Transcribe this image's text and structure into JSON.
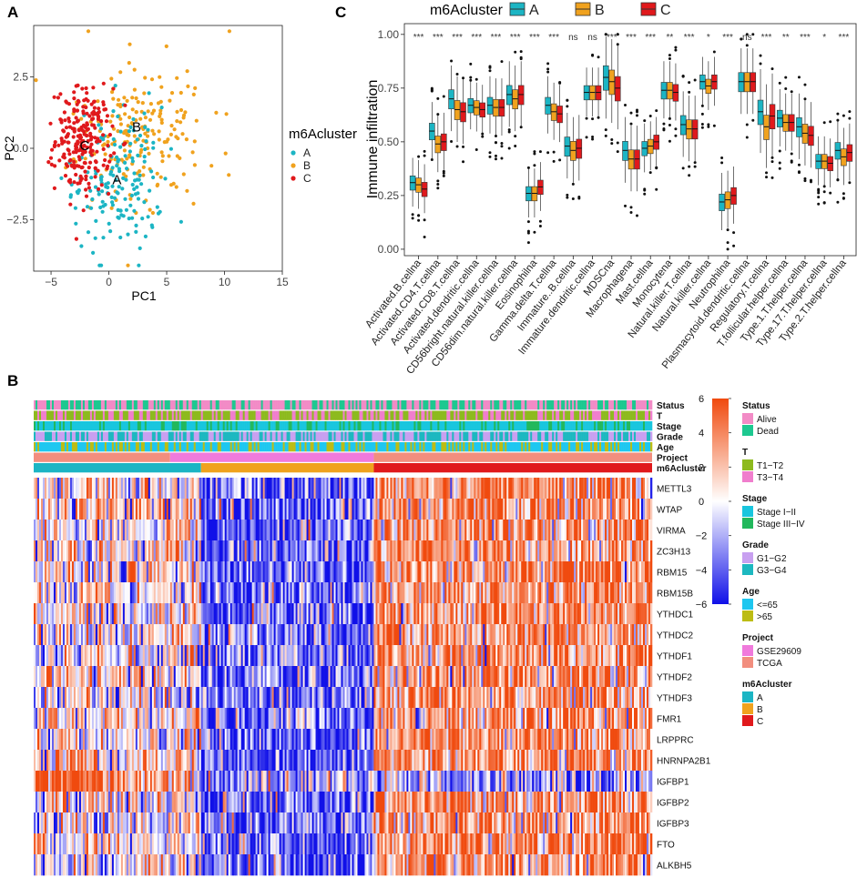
{
  "colors": {
    "A": "#1CB5C4",
    "B": "#F0A21E",
    "C": "#E0191C",
    "Alive": "#F28BC6",
    "Dead": "#1DC890",
    "T1T2": "#8DBA1E",
    "T3T4": "#F07ECD",
    "StageI": "#19C6DE",
    "StageIII": "#22B85C",
    "G1G2": "#C8A0F0",
    "G3G4": "#1DB8C0",
    "Age65": "#1EC7F0",
    "Age65plus": "#BCBC14",
    "GSE": "#F07ADC",
    "TCGA": "#F28E7E",
    "heatHigh": "#F04A0E",
    "heatMid": "#ffffff",
    "heatLow": "#1010E8"
  },
  "panels": {
    "a": "A",
    "b": "B",
    "c": "C"
  },
  "chart_data": [
    {
      "type": "scatter",
      "panel": "A",
      "xlabel": "PC1",
      "ylabel": "PC2",
      "xlim": [
        -6.5,
        15
      ],
      "ylim": [
        -4.3,
        4.3
      ],
      "xticks": [
        -5,
        0,
        5,
        10,
        15
      ],
      "xtick_labels": [
        "−5",
        "0",
        "5",
        "10",
        "15"
      ],
      "yticks": [
        -2.5,
        0,
        2.5
      ],
      "ytick_labels": [
        "−2.5",
        "0.0",
        "2.5"
      ],
      "legend_title": "m6Acluster",
      "legend": [
        "A",
        "B",
        "C"
      ],
      "centroid_labels": [
        {
          "label": "A",
          "x": 0.7,
          "y": -1.1
        },
        {
          "label": "B",
          "x": 2.4,
          "y": 0.75
        },
        {
          "label": "C",
          "x": -2.1,
          "y": 0.1
        }
      ],
      "series": [
        {
          "name": "A",
          "center": [
            0.8,
            -1.1
          ],
          "spread": [
            2.6,
            1.3
          ],
          "n": 170
        },
        {
          "name": "B",
          "center": [
            2.6,
            0.7
          ],
          "spread": [
            3.0,
            1.2
          ],
          "n": 200
        },
        {
          "name": "C",
          "center": [
            -2.2,
            0.3
          ],
          "spread": [
            1.6,
            0.9
          ],
          "n": 230
        }
      ]
    },
    {
      "type": "box",
      "panel": "C",
      "legend_title": "m6Acluster",
      "legend": [
        "A",
        "B",
        "C"
      ],
      "ylabel": "Immune infiltration",
      "ylim": [
        -0.03,
        1.05
      ],
      "yticks": [
        0,
        0.25,
        0.5,
        0.75,
        1.0
      ],
      "ytick_labels": [
        "0.00",
        "0.25",
        "0.50",
        "0.75",
        "1.00"
      ],
      "categories": [
        "Activated.B.cellna",
        "Activated.CD4.T.cellna",
        "Activated.CD8.T.cellna",
        "Activated.dendritic.cellna",
        "CD56bright.natural.killer.cellna",
        "CD56dim.natural.killer.cellna",
        "Eosinophilna",
        "Gamma.delta.T.cellna",
        "Immature..B.cellna",
        "Immature.dendritic.cellna",
        "MDSCna",
        "Macrophagena",
        "Mast.cellna",
        "Monocytena",
        "Natural.killer.T.cellna",
        "Natural.killer.cellna",
        "Neutrophilna",
        "Plasmacytoid.dendritic.cellna",
        "Regulatory.T.cellna",
        "T.follicular.helper.cellna",
        "Type.1.T.helper.cellna",
        "Type.17.T.helper.cellna",
        "Type.2.T.helper.cellna"
      ],
      "significance": [
        "***",
        "***",
        "***",
        "***",
        "***",
        "***",
        "***",
        "***",
        "ns",
        "ns",
        "***",
        "***",
        "***",
        "**",
        "***",
        "*",
        "***",
        "ns",
        "***",
        "**",
        "***",
        "*",
        "***"
      ],
      "series": [
        {
          "name": "A",
          "median": [
            0.31,
            0.55,
            0.7,
            0.67,
            0.67,
            0.72,
            0.26,
            0.67,
            0.48,
            0.73,
            0.8,
            0.46,
            0.47,
            0.74,
            0.58,
            0.78,
            0.22,
            0.78,
            0.64,
            0.61,
            0.57,
            0.41,
            0.46
          ]
        },
        {
          "name": "B",
          "median": [
            0.3,
            0.49,
            0.65,
            0.66,
            0.66,
            0.7,
            0.26,
            0.64,
            0.46,
            0.73,
            0.78,
            0.42,
            0.48,
            0.74,
            0.56,
            0.76,
            0.23,
            0.78,
            0.57,
            0.59,
            0.54,
            0.41,
            0.43
          ]
        },
        {
          "name": "C",
          "median": [
            0.28,
            0.5,
            0.64,
            0.65,
            0.66,
            0.72,
            0.29,
            0.63,
            0.47,
            0.73,
            0.75,
            0.42,
            0.5,
            0.73,
            0.56,
            0.78,
            0.25,
            0.78,
            0.62,
            0.59,
            0.53,
            0.4,
            0.45
          ]
        }
      ]
    },
    {
      "type": "heatmap",
      "panel": "B",
      "rows": [
        "METTL3",
        "WTAP",
        "VIRMA",
        "ZC3H13",
        "RBM15",
        "RBM15B",
        "YTHDC1",
        "YTHDC2",
        "YTHDF1",
        "YTHDF2",
        "YTHDF3",
        "FMR1",
        "LRPPRC",
        "HNRNPA2B1",
        "IGFBP1",
        "IGFBP2",
        "IGFBP3",
        "FTO",
        "ALKBH5"
      ],
      "annotation_rows": [
        "Status",
        "T",
        "Stage",
        "Grade",
        "Age",
        "Project",
        "m6Acluster"
      ],
      "colorbar_ticks": [
        6,
        4,
        2,
        0,
        -2,
        -4,
        -6
      ],
      "colorbar_labels": [
        "6",
        "4",
        "2",
        "0",
        "−2",
        "−4",
        "−6"
      ],
      "cluster_fractions": {
        "A": 0.27,
        "B": 0.28,
        "C": 0.45
      },
      "project_fractions": {
        "TCGA": 0.22,
        "GSE29609": 0.33,
        "TCGA2": 0.45
      },
      "legend": [
        {
          "title": "Status",
          "items": [
            {
              "label": "Alive",
              "color": "#F28BC6"
            },
            {
              "label": "Dead",
              "color": "#1DC890"
            }
          ]
        },
        {
          "title": "T",
          "items": [
            {
              "label": "T1−T2",
              "color": "#8DBA1E"
            },
            {
              "label": "T3−T4",
              "color": "#F07ECD"
            }
          ]
        },
        {
          "title": "Stage",
          "items": [
            {
              "label": "Stage I−II",
              "color": "#19C6DE"
            },
            {
              "label": "Stage III−IV",
              "color": "#22B85C"
            }
          ]
        },
        {
          "title": "Grade",
          "items": [
            {
              "label": "G1−G2",
              "color": "#C8A0F0"
            },
            {
              "label": "G3−G4",
              "color": "#1DB8C0"
            }
          ]
        },
        {
          "title": "Age",
          "items": [
            {
              "label": "<=65",
              "color": "#1EC7F0"
            },
            {
              "label": ">65",
              "color": "#BCBC14"
            }
          ]
        },
        {
          "title": "Project",
          "items": [
            {
              "label": "GSE29609",
              "color": "#F07ADC"
            },
            {
              "label": "TCGA",
              "color": "#F28E7E"
            }
          ]
        },
        {
          "title": "m6Acluster",
          "items": [
            {
              "label": "A",
              "color": "#1CB5C4"
            },
            {
              "label": "B",
              "color": "#F0A21E"
            },
            {
              "label": "C",
              "color": "#E0191C"
            }
          ]
        }
      ]
    }
  ]
}
